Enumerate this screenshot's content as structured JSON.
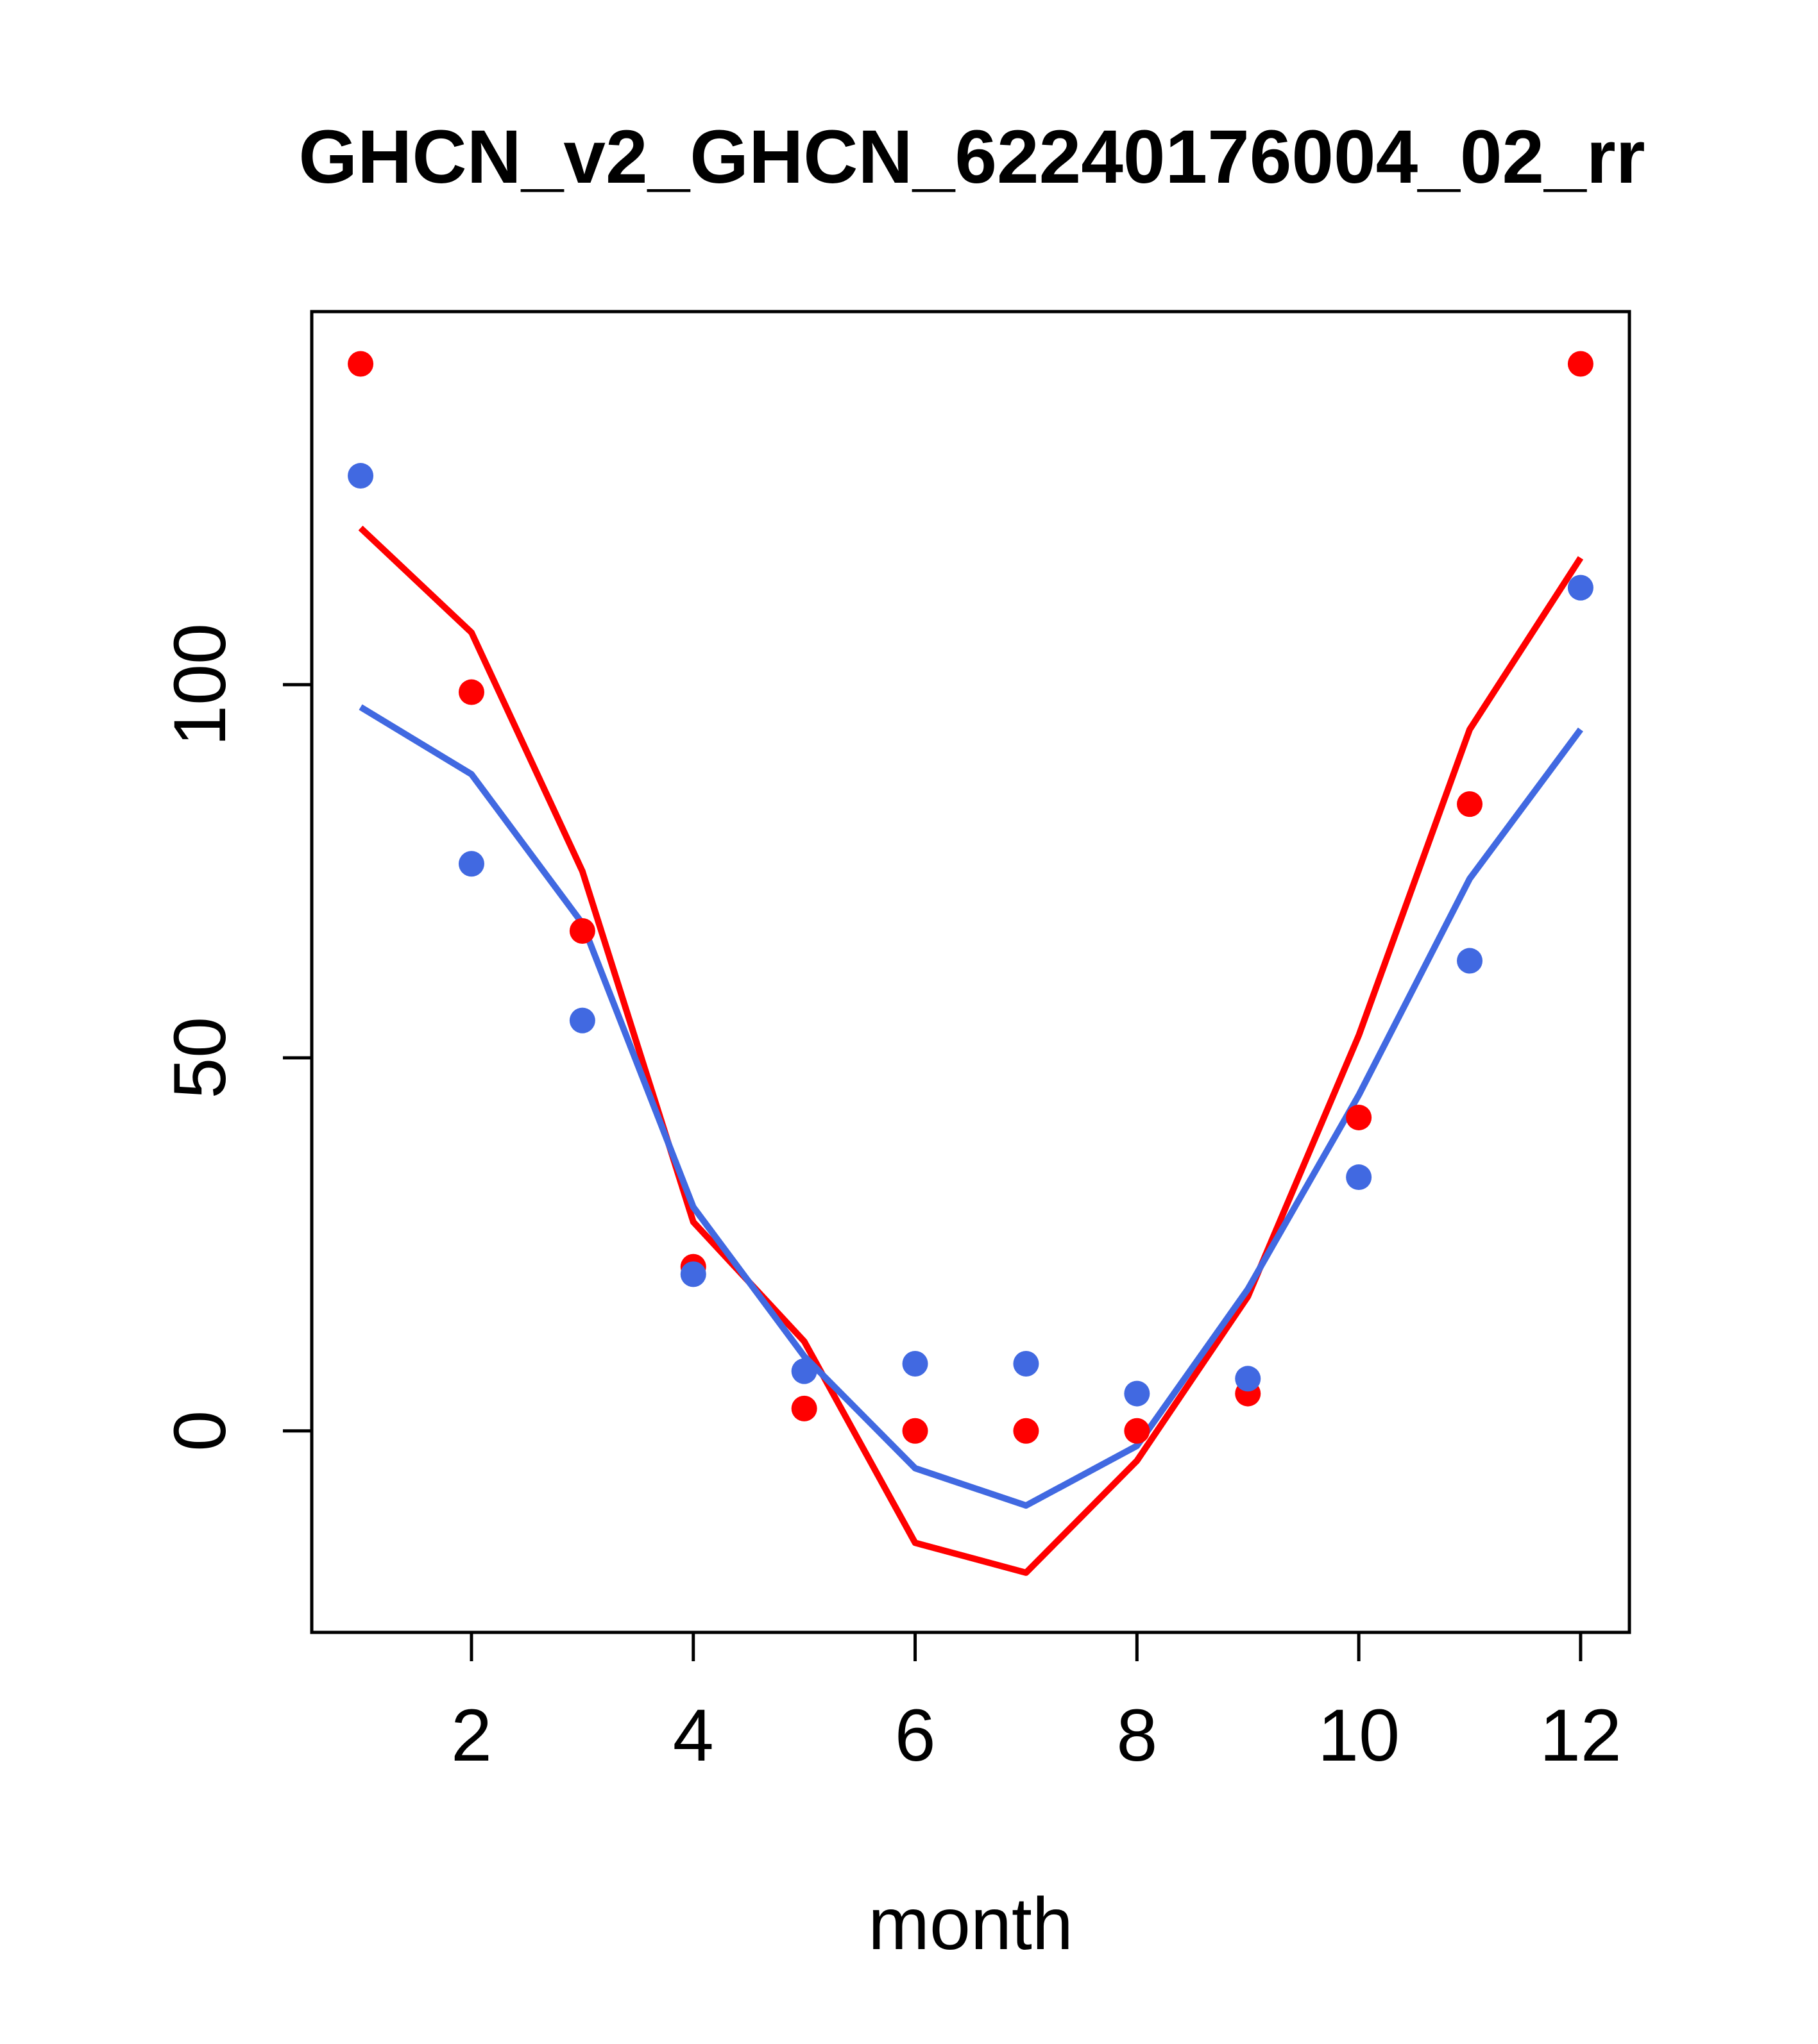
{
  "title": "GHCN_v2_GHCN_62240176004_02_rr",
  "chart_data": {
    "type": "line",
    "title": "GHCN_v2_GHCN_62240176004_02_rr",
    "xlabel": "month",
    "ylabel": "",
    "x": [
      1,
      2,
      3,
      4,
      5,
      6,
      7,
      8,
      9,
      10,
      11,
      12
    ],
    "xlim": [
      0.56,
      12.44
    ],
    "ylim": [
      -27,
      150
    ],
    "xticks": [
      2,
      4,
      6,
      8,
      10,
      12
    ],
    "yticks": [
      0,
      50,
      100
    ],
    "grid": false,
    "legend": "none",
    "colors": {
      "red": "#FF0000",
      "blue": "#4169E1"
    },
    "series": [
      {
        "name": "red-line",
        "type": "line",
        "color": "#FF0000",
        "values": [
          121,
          107,
          75,
          28,
          12,
          -15,
          -19,
          -4,
          18,
          53,
          94,
          117
        ]
      },
      {
        "name": "blue-line",
        "type": "line",
        "color": "#4169E1",
        "values": [
          97,
          88,
          68,
          30,
          10,
          -5,
          -10,
          -2,
          19,
          45,
          74,
          94
        ]
      },
      {
        "name": "red-points",
        "type": "scatter",
        "color": "#FF0000",
        "values": [
          143,
          99,
          67,
          22,
          3,
          0,
          0,
          0,
          5,
          42,
          84,
          143
        ]
      },
      {
        "name": "blue-points",
        "type": "scatter",
        "color": "#4169E1",
        "values": [
          128,
          76,
          55,
          21,
          8,
          9,
          9,
          5,
          7,
          34,
          63,
          113
        ]
      }
    ]
  }
}
